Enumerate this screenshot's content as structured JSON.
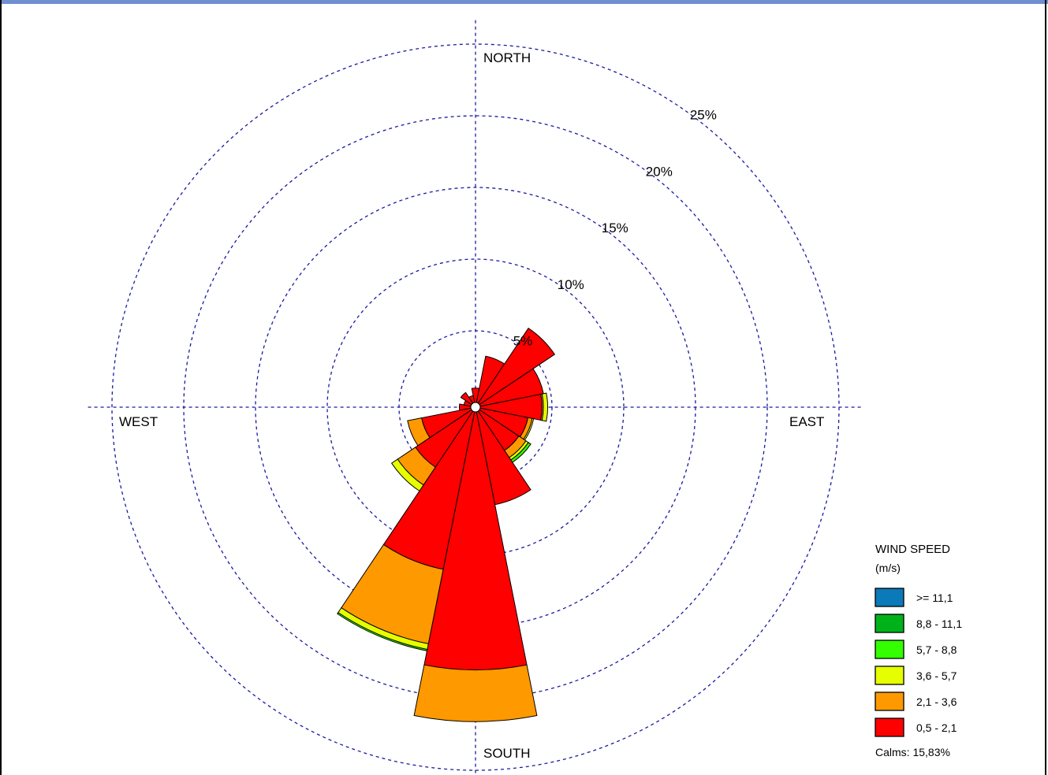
{
  "chart_data": {
    "type": "windrose",
    "units": "%",
    "directions": [
      "N",
      "NNE",
      "NE",
      "ENE",
      "E",
      "ESE",
      "SE",
      "SSE",
      "S",
      "SSW",
      "SW",
      "WSW",
      "W",
      "WNW",
      "NW",
      "NNW"
    ],
    "compass_labels": {
      "north": "NORTH",
      "east": "EAST",
      "south": "SOUTH",
      "west": "WEST"
    },
    "ring_values": [
      5,
      10,
      15,
      20,
      25
    ],
    "ring_labels": [
      "5%",
      "10%",
      "15%",
      "20%",
      "25%"
    ],
    "max_ring": 27,
    "legend": {
      "title_line1": "WIND SPEED",
      "title_line2": "(m/s)",
      "bins": [
        {
          "label": ">= 11,1",
          "color": "#0a7ab8"
        },
        {
          "label": "8,8 - 11,1",
          "color": "#00b21a"
        },
        {
          "label": "5,7 -  8,8",
          "color": "#33ff00"
        },
        {
          "label": "3,6 -  5,7",
          "color": "#e6ff00"
        },
        {
          "label": "2,1 -  3,6",
          "color": "#ff9900"
        },
        {
          "label": "0,5 -  2,1",
          "color": "#ff0000"
        }
      ],
      "calms": "Calms: 15,83%"
    },
    "series_order": [
      "0,5 -  2,1",
      "2,1 -  3,6",
      "3,6 -  5,7",
      "5,7 -  8,8",
      "8,8 - 11,1",
      ">= 11,1"
    ],
    "values": [
      [
        1.0,
        0.0,
        0.0,
        0.0,
        0.0,
        0.0
      ],
      [
        3.3,
        0.0,
        0.0,
        0.0,
        0.0,
        0.0
      ],
      [
        6.3,
        0.0,
        0.0,
        0.0,
        0.0,
        0.0
      ],
      [
        4.5,
        0.0,
        0.0,
        0.0,
        0.0,
        0.0
      ],
      [
        4.3,
        0.1,
        0.3,
        0.0,
        0.0,
        0.0
      ],
      [
        3.4,
        0.3,
        0.1,
        0.0,
        0.0,
        0.0
      ],
      [
        3.3,
        0.6,
        0.2,
        0.2,
        0.0,
        0.0
      ],
      [
        6.6,
        0.0,
        0.0,
        0.0,
        0.0,
        0.0
      ],
      [
        18.0,
        3.6,
        0.0,
        0.0,
        0.0,
        0.0
      ],
      [
        11.2,
        5.3,
        0.4,
        0.1,
        0.0,
        0.0
      ],
      [
        4.7,
        1.5,
        0.5,
        0.0,
        0.0,
        0.0
      ],
      [
        3.5,
        1.0,
        0.0,
        0.0,
        0.0,
        0.0
      ],
      [
        0.8,
        0.0,
        0.0,
        0.0,
        0.0,
        0.0
      ],
      [
        0.5,
        0.0,
        0.0,
        0.0,
        0.0,
        0.0
      ],
      [
        0.9,
        0.0,
        0.0,
        0.0,
        0.0,
        0.0
      ],
      [
        0.5,
        0.0,
        0.0,
        0.0,
        0.0,
        0.0
      ]
    ]
  }
}
